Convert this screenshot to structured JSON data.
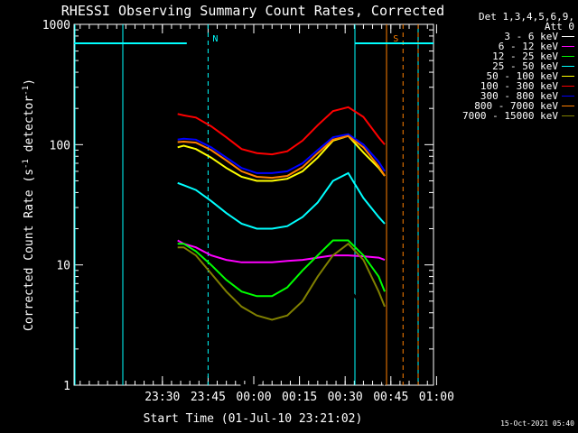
{
  "chart_data": {
    "type": "line",
    "title": "RHESSI Observing Summary Count Rates, Corrected",
    "xlabel": "Start Time (01-Jul-10 23:21:02)",
    "ylabel_parts": [
      "Corrected Count Rate (s",
      "-1",
      " detector",
      "-1",
      ")"
    ],
    "yscale": "log",
    "ylim": [
      1,
      1000
    ],
    "yticks": [
      "1",
      "10",
      "100",
      "1000"
    ],
    "xlim_minutes": [
      -20,
      98
    ],
    "xticks": [
      "23:30",
      "23:45",
      "00:00",
      "00:15",
      "00:30",
      "00:45",
      "01:00"
    ],
    "xtick_minutes": [
      9,
      24,
      39,
      54,
      69,
      84,
      99
    ],
    "legend_header": [
      "Det 1,3,4,5,6,9,",
      "Att 0"
    ],
    "series": [
      {
        "name": "3 - 6 keV",
        "color": "#000000",
        "x": [
          14,
          16,
          20,
          26,
          30,
          35,
          40,
          45,
          50,
          55,
          60,
          65,
          70,
          75,
          80,
          82
        ],
        "y": [
          8,
          8,
          6,
          4,
          2.2,
          1,
          1,
          1.3,
          1.8,
          3,
          5,
          8,
          7,
          4,
          1.2,
          1
        ]
      },
      {
        "name": "6 - 12 keV",
        "color": "#ff00ff",
        "x": [
          14,
          16,
          20,
          25,
          30,
          35,
          40,
          45,
          50,
          55,
          60,
          65,
          70,
          75,
          80,
          82
        ],
        "y": [
          16,
          15,
          14,
          12,
          11,
          10.5,
          10.5,
          10.5,
          10.8,
          11,
          11.5,
          12,
          12,
          11.8,
          11.5,
          11
        ]
      },
      {
        "name": "12 - 25 keV",
        "color": "#00ff00",
        "x": [
          14,
          16,
          20,
          25,
          30,
          35,
          40,
          45,
          50,
          55,
          60,
          65,
          70,
          75,
          80,
          82
        ],
        "y": [
          15,
          15,
          13,
          10,
          7.5,
          6,
          5.5,
          5.5,
          6.5,
          9,
          12,
          16,
          16,
          12,
          8,
          6
        ]
      },
      {
        "name": "25 - 50 keV",
        "color": "#00ffff",
        "x": [
          14,
          16,
          20,
          25,
          30,
          35,
          40,
          45,
          50,
          55,
          60,
          65,
          70,
          75,
          80,
          82
        ],
        "y": [
          48,
          46,
          42,
          34,
          27,
          22,
          20,
          20,
          21,
          25,
          33,
          50,
          58,
          36,
          25,
          22
        ]
      },
      {
        "name": "50 - 100 keV",
        "color": "#ffff00",
        "x": [
          14,
          16,
          20,
          25,
          30,
          35,
          40,
          45,
          50,
          55,
          60,
          65,
          70,
          75,
          80,
          82
        ],
        "y": [
          95,
          98,
          92,
          78,
          64,
          54,
          50,
          50,
          52,
          60,
          78,
          108,
          118,
          86,
          64,
          55
        ]
      },
      {
        "name": "100 - 300 keV",
        "color": "#ff0000",
        "x": [
          14,
          16,
          20,
          25,
          30,
          35,
          40,
          45,
          50,
          55,
          60,
          65,
          70,
          75,
          80,
          82
        ],
        "y": [
          180,
          175,
          168,
          142,
          115,
          92,
          85,
          83,
          88,
          108,
          145,
          190,
          205,
          170,
          115,
          100
        ]
      },
      {
        "name": "300 - 800 keV",
        "color": "#0000ff",
        "x": [
          14,
          16,
          20,
          25,
          30,
          35,
          40,
          45,
          50,
          55,
          60,
          65,
          70,
          75,
          80,
          82
        ],
        "y": [
          110,
          112,
          110,
          95,
          78,
          64,
          58,
          58,
          60,
          70,
          90,
          115,
          122,
          100,
          72,
          60
        ]
      },
      {
        "name": "800 - 7000 keV",
        "color": "#ff8000",
        "x": [
          14,
          16,
          20,
          25,
          30,
          35,
          40,
          45,
          50,
          55,
          60,
          65,
          70,
          75,
          80,
          82
        ],
        "y": [
          105,
          106,
          104,
          90,
          74,
          60,
          54,
          53,
          55,
          65,
          85,
          110,
          118,
          95,
          66,
          55
        ]
      },
      {
        "name": "7000 - 15000 keV",
        "color": "#808000",
        "x": [
          14,
          16,
          20,
          25,
          30,
          35,
          40,
          45,
          50,
          55,
          60,
          65,
          70,
          75,
          80,
          82
        ],
        "y": [
          14,
          14,
          12,
          8.5,
          6,
          4.5,
          3.8,
          3.5,
          3.8,
          5,
          8,
          12,
          15,
          11,
          6,
          4.5
        ]
      }
    ],
    "annotations": [
      {
        "text": "N",
        "color": "#00ffff",
        "x_minutes": 24,
        "bar": [
          -20,
          17
        ]
      },
      {
        "text": "S",
        "color": "#ff8000",
        "x_minutes": 88,
        "bar": [
          88,
          96
        ]
      }
    ]
  },
  "footer": "15-Oct-2021 05:40"
}
